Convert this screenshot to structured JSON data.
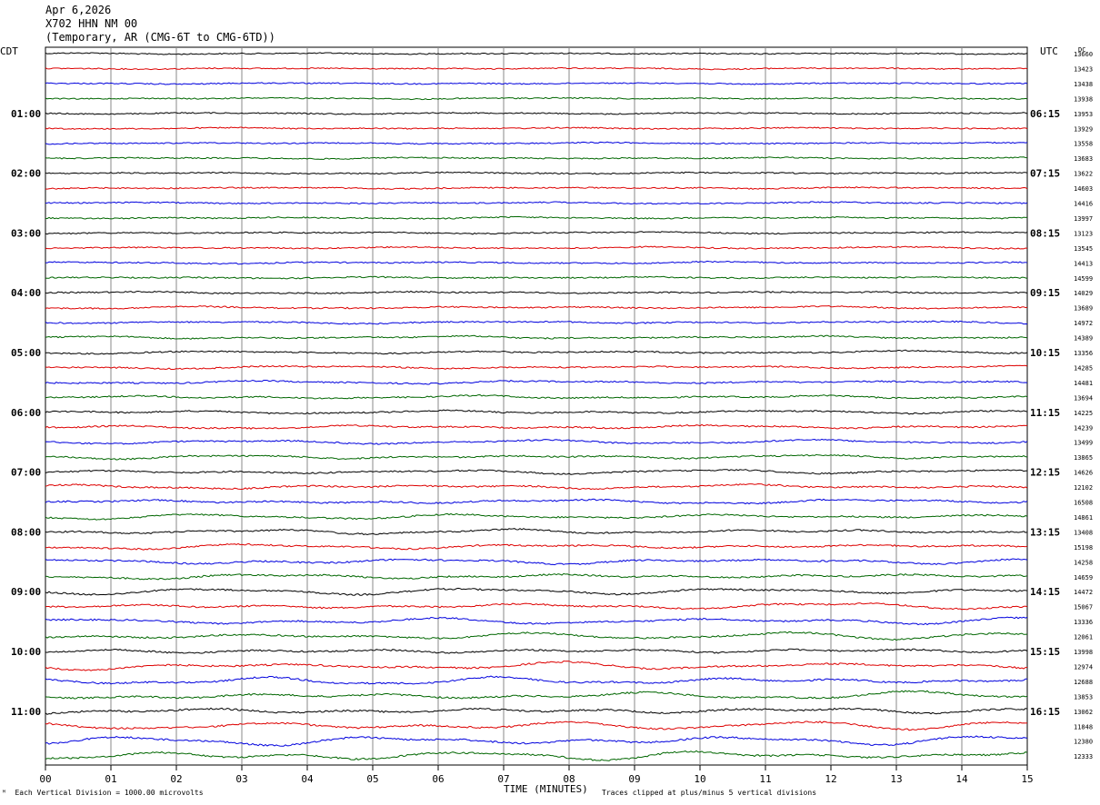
{
  "header": {
    "date": "Apr 6,2026",
    "station": "X702 HHN NM 00",
    "network": "(Temporary, AR (CMG-6T to CMG-6TD))"
  },
  "chart_data": {
    "type": "line",
    "title": "",
    "xlabel": "TIME (MINUTES)",
    "x_ticks": [
      "00",
      "01",
      "02",
      "03",
      "04",
      "05",
      "06",
      "07",
      "08",
      "09",
      "10",
      "11",
      "12",
      "13",
      "14",
      "15"
    ],
    "xlim": [
      0,
      15
    ],
    "left_axis_label": "CDT",
    "right_axis_label": "UTC",
    "dc_label": "DC",
    "left_hour_labels": [
      "01:00",
      "02:00",
      "03:00",
      "04:00",
      "05:00",
      "06:00",
      "07:00",
      "08:00",
      "09:00",
      "10:00",
      "11:00"
    ],
    "right_hour_labels": [
      "06:15",
      "07:15",
      "08:15",
      "09:15",
      "10:15",
      "11:15",
      "12:15",
      "13:15",
      "14:15",
      "15:15",
      "16:15"
    ],
    "dc_offsets": [
      13660,
      13423,
      13438,
      13938,
      13953,
      13929,
      13558,
      13683,
      13622,
      14603,
      14416,
      13997,
      13123,
      13545,
      14413,
      14599,
      14029,
      13689,
      14972,
      14389,
      13356,
      14285,
      14481,
      13694,
      14225,
      14239,
      13499,
      13865,
      14626,
      12102,
      16508,
      14861,
      13408,
      15198,
      14258,
      14659,
      14472,
      15067,
      13336,
      12061,
      13998,
      12974,
      12688,
      13853,
      13062,
      11848,
      12380,
      12333
    ],
    "trace_colors": [
      "#000000",
      "#dd0000",
      "#0000dd",
      "#006600"
    ],
    "num_traces": 48,
    "minutes_per_trace": 15,
    "notes": {
      "scale": "Each Vertical Division = 1000.00 microvolts",
      "clip": "Traces clipped at plus/minus 5 vertical divisions"
    }
  }
}
